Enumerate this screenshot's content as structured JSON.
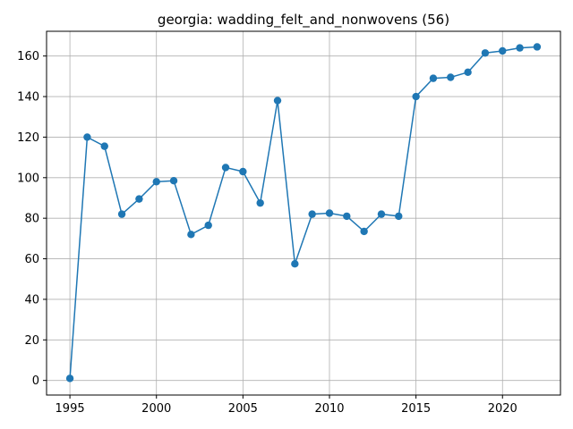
{
  "chart_data": {
    "type": "line",
    "title": "georgia: wadding_felt_and_nonwovens (56)",
    "xlabel": "",
    "ylabel": "",
    "xlim": [
      1993.65,
      2023.35
    ],
    "ylim": [
      -7.2,
      172.2
    ],
    "xticks": [
      1995,
      2000,
      2005,
      2010,
      2015,
      2020
    ],
    "yticks": [
      0,
      20,
      40,
      60,
      80,
      100,
      120,
      140,
      160
    ],
    "grid": true,
    "color": "#1f77b4",
    "marker": "circle",
    "x": [
      1995,
      1996,
      1997,
      1998,
      1999,
      2000,
      2001,
      2002,
      2003,
      2004,
      2005,
      2006,
      2007,
      2008,
      2009,
      2010,
      2011,
      2012,
      2013,
      2014,
      2015,
      2016,
      2017,
      2018,
      2019,
      2020,
      2021,
      2022
    ],
    "y": [
      1,
      120,
      115.5,
      82,
      89.5,
      98,
      98.5,
      72,
      76.5,
      105,
      103,
      87.5,
      138,
      57.5,
      82,
      82.5,
      81,
      73.5,
      82,
      81,
      140,
      149,
      149.5,
      152,
      161.5,
      162.5,
      164,
      164.5
    ]
  }
}
